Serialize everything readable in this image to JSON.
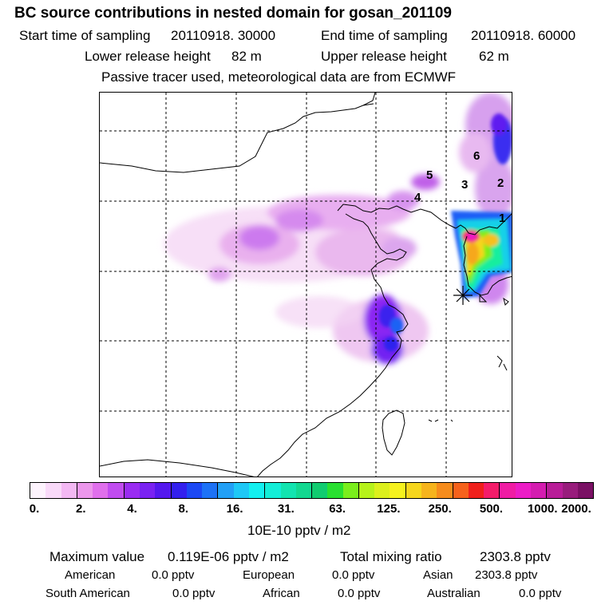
{
  "title": "BC  source contributions in nested domain for gosan_201109",
  "sampling": {
    "start_label": "Start time of sampling",
    "start_value": "20110918. 30000",
    "end_label": "End time of sampling",
    "end_value": "20110918. 60000"
  },
  "release": {
    "lower_label": "Lower release height",
    "lower_value": "82 m",
    "upper_label": "Upper release height",
    "upper_value": "62 m"
  },
  "info": "Passive tracer used, meteorological data are from ECMWF",
  "map": {
    "region_labels": [
      "1",
      "2",
      "3",
      "4",
      "5",
      "6"
    ],
    "receptor_marker": "receptor-star-icon"
  },
  "colorbar": {
    "colors": [
      "#fdf3fd",
      "#f9d9f9",
      "#f3b8f3",
      "#ec97ec",
      "#e06fec",
      "#c14cf0",
      "#9a2cf2",
      "#7a22f2",
      "#5418ee",
      "#3320ee",
      "#1c48f4",
      "#1d72f6",
      "#22a0f6",
      "#1ec8f6",
      "#13f0f0",
      "#13eed8",
      "#12e4b0",
      "#12d890",
      "#10cc70",
      "#28e030",
      "#7aee1c",
      "#b6f21a",
      "#dcf01c",
      "#f6f21e",
      "#f6d61c",
      "#f6b41c",
      "#f68c1c",
      "#f6621c",
      "#f0201c",
      "#f41c6a",
      "#f01ca4",
      "#ec1cc6",
      "#d41cb0",
      "#b81c98",
      "#981c7c",
      "#7a1064"
    ],
    "tick_labels": [
      "0.",
      "2.",
      "4.",
      "8.",
      "16.",
      "31.",
      "63.",
      "125.",
      "250.",
      "500.",
      "1000.",
      "2000."
    ],
    "unit": "10E-10 pptv / m2"
  },
  "summary": {
    "max_label": "Maximum value",
    "max_value": "0.119E-06 pptv / m2",
    "total_label": "Total mixing ratio",
    "total_value": "2303.8 pptv"
  },
  "contributions": [
    {
      "region": "American",
      "value": "0.0 pptv"
    },
    {
      "region": "European",
      "value": "0.0 pptv"
    },
    {
      "region": "Asian",
      "value": "2303.8 pptv"
    },
    {
      "region": "South American",
      "value": "0.0 pptv"
    },
    {
      "region": "African",
      "value": "0.0 pptv"
    },
    {
      "region": "Australian",
      "value": "0.0 pptv"
    }
  ]
}
